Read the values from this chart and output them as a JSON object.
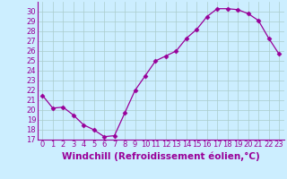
{
  "x": [
    0,
    1,
    2,
    3,
    4,
    5,
    6,
    7,
    8,
    9,
    10,
    11,
    12,
    13,
    14,
    15,
    16,
    17,
    18,
    19,
    20,
    21,
    22,
    23
  ],
  "y": [
    21.5,
    20.2,
    20.3,
    19.5,
    18.5,
    18.0,
    17.3,
    17.4,
    19.7,
    22.0,
    23.5,
    25.0,
    25.5,
    26.0,
    27.3,
    28.2,
    29.5,
    30.3,
    30.3,
    30.2,
    29.8,
    29.1,
    27.3,
    25.7
  ],
  "xlabel": "Windchill (Refroidissement éolien,°C)",
  "ylim": [
    17,
    31
  ],
  "xlim": [
    -0.5,
    23.5
  ],
  "yticks": [
    17,
    18,
    19,
    20,
    21,
    22,
    23,
    24,
    25,
    26,
    27,
    28,
    29,
    30
  ],
  "xticks": [
    0,
    1,
    2,
    3,
    4,
    5,
    6,
    7,
    8,
    9,
    10,
    11,
    12,
    13,
    14,
    15,
    16,
    17,
    18,
    19,
    20,
    21,
    22,
    23
  ],
  "line_color": "#990099",
  "marker": "D",
  "marker_size": 2.5,
  "bg_color": "#cceeff",
  "grid_color": "#aacccc",
  "xlabel_fontsize": 7.5,
  "tick_fontsize": 6
}
